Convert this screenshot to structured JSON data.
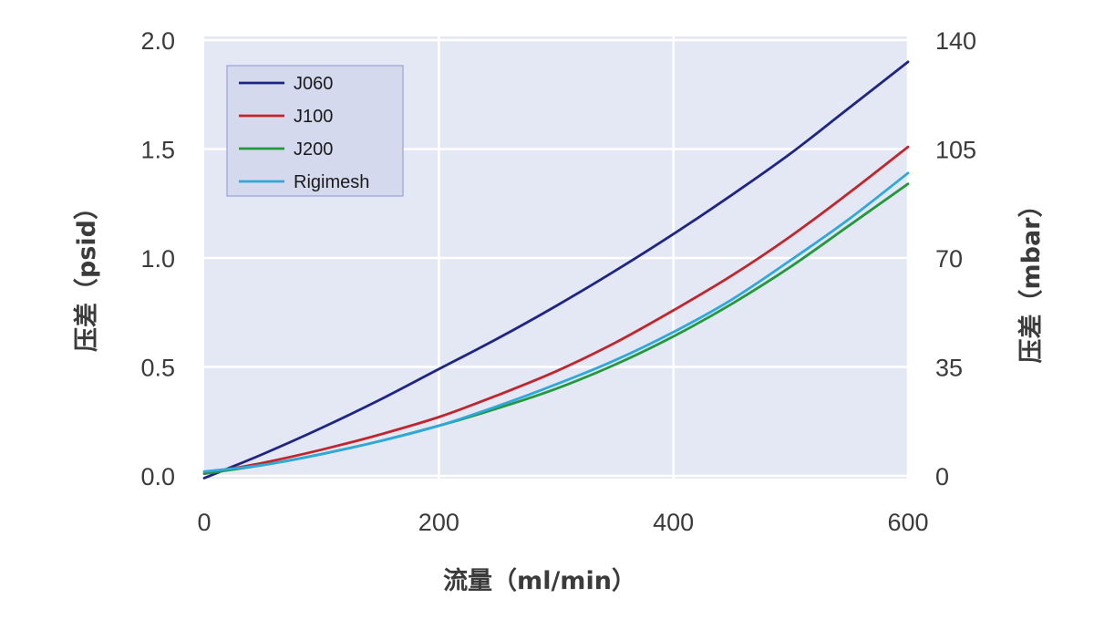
{
  "chart_data": {
    "type": "line",
    "xlabel": "流量（ml/min）",
    "ylabel": "压差（psid）",
    "y2label": "压差（mbar）",
    "xlim": [
      0,
      600
    ],
    "ylim": [
      0,
      2.0
    ],
    "y2lim": [
      0,
      140
    ],
    "x_ticks": [
      "0",
      "200",
      "400",
      "600"
    ],
    "y_ticks": [
      "0.0",
      "0.5",
      "1.0",
      "1.5",
      "2.0"
    ],
    "y2_ticks": [
      "0",
      "35",
      "70",
      "105",
      "140"
    ],
    "x_tick_values": [
      0,
      200,
      400,
      600
    ],
    "y_tick_values": [
      0,
      0.5,
      1.0,
      1.5,
      2.0
    ],
    "grid": true,
    "legend_position": "top-left",
    "background_color": "#e4e7f4",
    "grid_color": "#ffffff",
    "series": [
      {
        "name": "J060",
        "color": "#1f2585",
        "points": [
          [
            0,
            -0.01
          ],
          [
            50,
            0.1
          ],
          [
            100,
            0.22
          ],
          [
            150,
            0.35
          ],
          [
            200,
            0.49
          ],
          [
            250,
            0.63
          ],
          [
            300,
            0.78
          ],
          [
            350,
            0.94
          ],
          [
            400,
            1.11
          ],
          [
            450,
            1.29
          ],
          [
            500,
            1.48
          ],
          [
            550,
            1.69
          ],
          [
            600,
            1.9
          ]
        ]
      },
      {
        "name": "J100",
        "color": "#c0262d",
        "points": [
          [
            0,
            0.01
          ],
          [
            50,
            0.06
          ],
          [
            100,
            0.12
          ],
          [
            150,
            0.19
          ],
          [
            200,
            0.27
          ],
          [
            250,
            0.37
          ],
          [
            300,
            0.48
          ],
          [
            350,
            0.61
          ],
          [
            400,
            0.76
          ],
          [
            450,
            0.92
          ],
          [
            500,
            1.1
          ],
          [
            550,
            1.3
          ],
          [
            600,
            1.51
          ]
        ]
      },
      {
        "name": "J200",
        "color": "#23983c",
        "points": [
          [
            0,
            0.01
          ],
          [
            50,
            0.05
          ],
          [
            100,
            0.1
          ],
          [
            150,
            0.16
          ],
          [
            200,
            0.23
          ],
          [
            250,
            0.31
          ],
          [
            300,
            0.4
          ],
          [
            350,
            0.51
          ],
          [
            400,
            0.64
          ],
          [
            450,
            0.79
          ],
          [
            500,
            0.96
          ],
          [
            550,
            1.15
          ],
          [
            600,
            1.34
          ]
        ]
      },
      {
        "name": "Rigimesh",
        "color": "#2ea8dd",
        "points": [
          [
            0,
            0.02
          ],
          [
            50,
            0.05
          ],
          [
            100,
            0.1
          ],
          [
            150,
            0.16
          ],
          [
            200,
            0.23
          ],
          [
            250,
            0.32
          ],
          [
            300,
            0.42
          ],
          [
            350,
            0.53
          ],
          [
            400,
            0.66
          ],
          [
            450,
            0.81
          ],
          [
            500,
            0.99
          ],
          [
            550,
            1.18
          ],
          [
            600,
            1.39
          ]
        ]
      }
    ]
  }
}
